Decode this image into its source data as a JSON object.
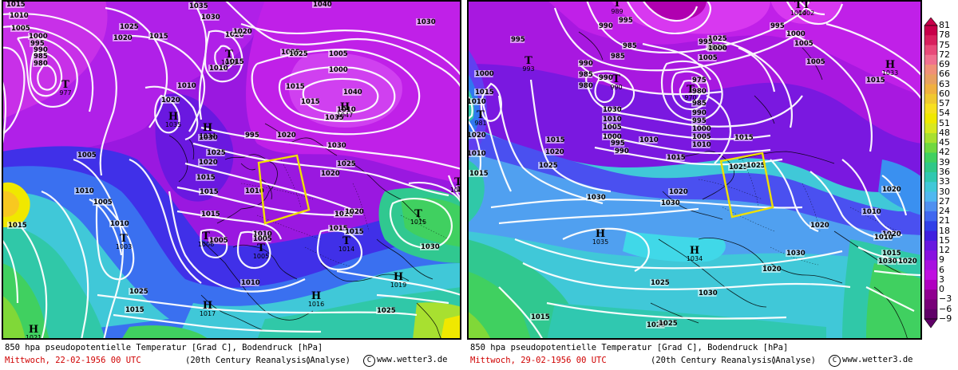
{
  "maps": [
    {
      "caption_line1": "850 hpa pseudopotentielle Temperatur [Grad C], Bodendruck [hPa]",
      "date": "Mittwoch, 22-02-1956  00 UTC",
      "reanalysis": "(20th Century Reanalysis)",
      "analysis": "(Analyse)",
      "copyright": "www.wetter3.de",
      "pressure_labels": [
        "1015",
        "1010",
        "1005",
        "1000",
        "995",
        "990",
        "985",
        "980",
        "1025",
        "1020",
        "1035",
        "1030",
        "1040",
        "1030",
        "1025",
        "1020",
        "1015",
        "1010",
        "1005",
        "1000",
        "995",
        "1005",
        "1010",
        "1005",
        "1015",
        "1010",
        "1015",
        "1020",
        "1025",
        "1030",
        "1035",
        "1040",
        "1030",
        "1025",
        "1020",
        "1015",
        "1015",
        "1010",
        "1015",
        "1005",
        "1010",
        "1015",
        "1025",
        "1020",
        "1015",
        "1010",
        "1005",
        "1030",
        "1025",
        "1020",
        "1015",
        "1020",
        "1010",
        "1020",
        "1015",
        "1010",
        "1015",
        "1025",
        "1020",
        "1015"
      ],
      "pressure_centers": [
        {
          "type": "T",
          "value": "977"
        },
        {
          "type": "T",
          "value": "1013"
        },
        {
          "type": "H",
          "value": "1035"
        },
        {
          "type": "H",
          "value": "1034"
        },
        {
          "type": "H",
          "value": "1047"
        },
        {
          "type": "T",
          "value": "1003"
        },
        {
          "type": "T",
          "value": "1006"
        },
        {
          "type": "T",
          "value": "1005"
        },
        {
          "type": "T",
          "value": "1014"
        },
        {
          "type": "T",
          "value": "1015"
        },
        {
          "type": "H",
          "value": "1019"
        },
        {
          "type": "H",
          "value": "1016"
        },
        {
          "type": "H",
          "value": "1017"
        },
        {
          "type": "H",
          "value": "1021"
        },
        {
          "type": "T",
          "value": "1030"
        }
      ]
    },
    {
      "caption_line1": "850 hpa pseudopotentielle Temperatur [Grad C], Bodendruck [hPa]",
      "date": "Mittwoch, 29-02-1956  00 UTC",
      "reanalysis": "(20th Century Reanalysis)",
      "analysis": "(Analyse)",
      "copyright": "www.wetter3.de",
      "pressure_labels": [
        "995",
        "990",
        "985",
        "1000",
        "995",
        "990",
        "985",
        "980",
        "975",
        "980",
        "985",
        "990",
        "995",
        "1000",
        "1005",
        "1010",
        "1015",
        "1020",
        "1025",
        "1030",
        "1010",
        "1005",
        "1000",
        "995",
        "990",
        "985",
        "1015",
        "1020",
        "1025",
        "1030",
        "1030",
        "1025",
        "1020",
        "1025",
        "1030",
        "1015",
        "1010",
        "1015",
        "1020",
        "1010",
        "1015",
        "1025",
        "1020",
        "1025",
        "1020",
        "1030",
        "995",
        "1000",
        "1005",
        "990",
        "995",
        "1000",
        "1005",
        "1010",
        "1015",
        "1020",
        "1025",
        "1030",
        "1005",
        "1010",
        "1015",
        "1020",
        "1010",
        "1015",
        "1020"
      ],
      "pressure_centers": [
        {
          "type": "T",
          "value": "989"
        },
        {
          "type": "T",
          "value": "1002"
        },
        {
          "type": "T",
          "value": "1004"
        },
        {
          "type": "H",
          "value": "1033"
        },
        {
          "type": "T",
          "value": "993"
        },
        {
          "type": "T",
          "value": "981"
        },
        {
          "type": "T",
          "value": "990"
        },
        {
          "type": "T",
          "value": "970"
        },
        {
          "type": "H",
          "value": "1035"
        },
        {
          "type": "H",
          "value": "1034"
        }
      ]
    }
  ],
  "colorbar": {
    "ticks": [
      "81",
      "78",
      "75",
      "72",
      "69",
      "66",
      "63",
      "60",
      "57",
      "54",
      "51",
      "48",
      "45",
      "42",
      "39",
      "36",
      "33",
      "30",
      "27",
      "24",
      "21",
      "18",
      "15",
      "12",
      "9",
      "6",
      "3",
      "0",
      "−3",
      "−6",
      "−9"
    ],
    "colors": [
      "#c8004a",
      "#d8205e",
      "#e84a7a",
      "#f07090",
      "#f09078",
      "#e8a060",
      "#f0b040",
      "#f0c830",
      "#f8e020",
      "#f0e800",
      "#d8e820",
      "#a8e030",
      "#70d840",
      "#40d060",
      "#30c888",
      "#30c8b0",
      "#40c8d8",
      "#50b8f0",
      "#5090f0",
      "#4068f0",
      "#3040e8",
      "#4020e0",
      "#6818e0",
      "#8810e0",
      "#a810e0",
      "#c010e0",
      "#b000c0",
      "#900090",
      "#780078",
      "#600068"
    ]
  }
}
